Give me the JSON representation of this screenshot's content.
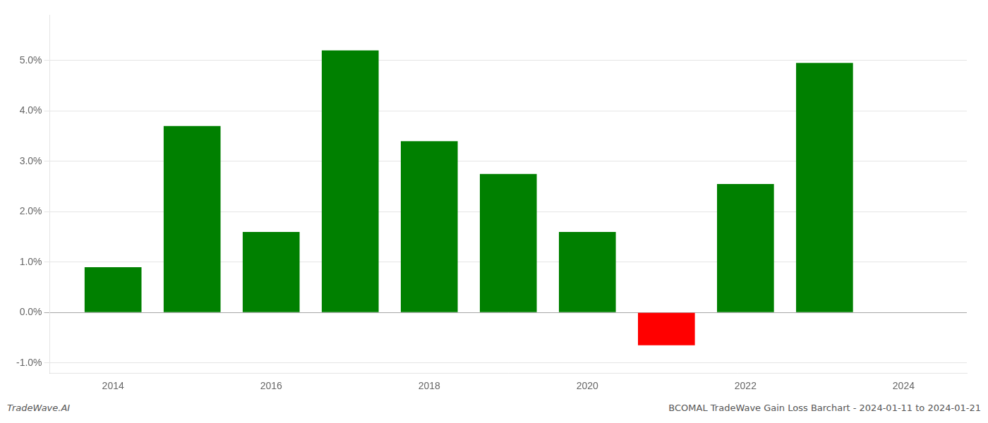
{
  "chart_data": {
    "type": "bar",
    "x": [
      2014,
      2015,
      2016,
      2017,
      2018,
      2019,
      2020,
      2021,
      2022,
      2023
    ],
    "values": [
      0.009,
      0.037,
      0.016,
      0.052,
      0.034,
      0.0275,
      0.016,
      -0.0065,
      0.0255,
      0.0495
    ],
    "colors": [
      "#008000",
      "#008000",
      "#008000",
      "#008000",
      "#008000",
      "#008000",
      "#008000",
      "#ff0000",
      "#008000",
      "#008000"
    ],
    "xlim": [
      2013.2,
      2024.8
    ],
    "xticks": [
      2014,
      2016,
      2018,
      2020,
      2022,
      2024
    ],
    "ylim": [
      -0.012,
      0.059
    ],
    "yticks": [
      {
        "value": -0.01,
        "label": "-1.0%"
      },
      {
        "value": 0.0,
        "label": "0.0%"
      },
      {
        "value": 0.01,
        "label": "1.0%"
      },
      {
        "value": 0.02,
        "label": "2.0%"
      },
      {
        "value": 0.03,
        "label": "3.0%"
      },
      {
        "value": 0.04,
        "label": "4.0%"
      },
      {
        "value": 0.05,
        "label": "5.0%"
      }
    ],
    "grid": "y",
    "annotations": [
      "TradeWave.AI",
      "BCOMAL TradeWave Gain Loss Barchart - 2024-01-11 to 2024-01-21"
    ]
  }
}
